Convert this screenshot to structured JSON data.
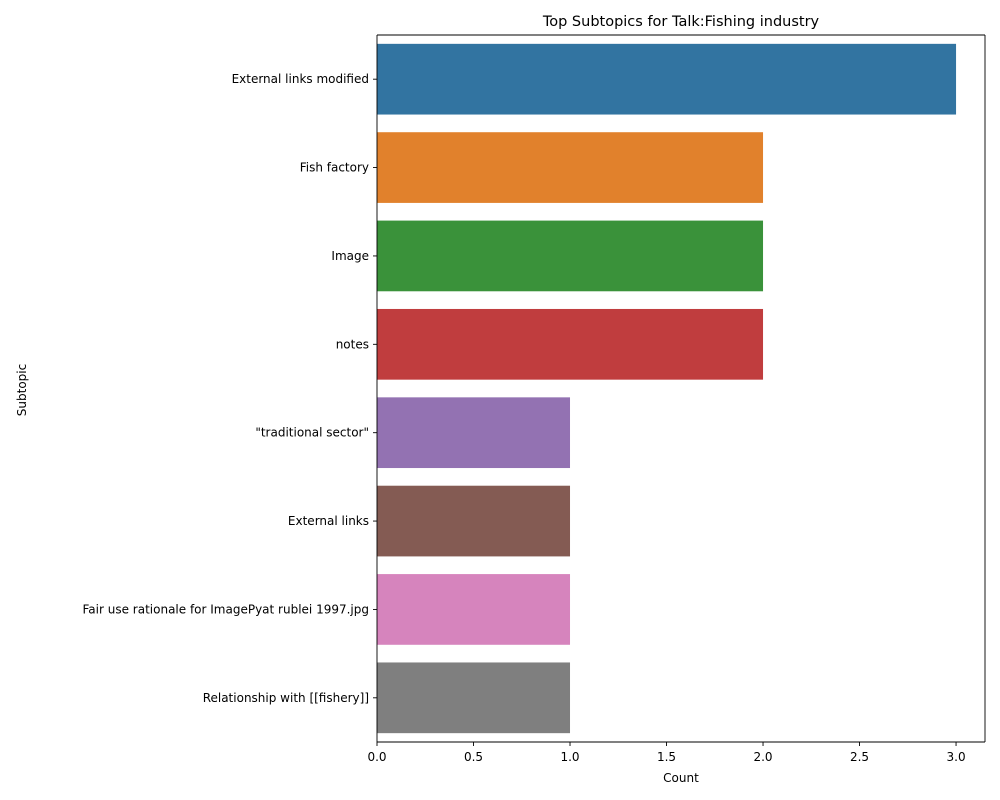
{
  "chart_data": {
    "type": "bar",
    "orientation": "horizontal",
    "title": "Top Subtopics for Talk:Fishing industry",
    "xlabel": "Count",
    "ylabel": "Subtopic",
    "xlim": [
      0,
      3.15
    ],
    "xticks": [
      0.0,
      0.5,
      1.0,
      1.5,
      2.0,
      2.5,
      3.0
    ],
    "xtick_labels": [
      "0.0",
      "0.5",
      "1.0",
      "1.5",
      "2.0",
      "2.5",
      "3.0"
    ],
    "grid": false,
    "legend": "none",
    "categories": [
      "External links modified",
      "Fish factory",
      "Image",
      "notes",
      "\"traditional sector\"",
      "External links",
      "Fair use rationale for ImagePyat rublei 1997.jpg",
      "Relationship with [[fishery]]"
    ],
    "values": [
      3,
      2,
      2,
      2,
      1,
      1,
      1,
      1
    ],
    "colors": [
      "#3274a1",
      "#e1812c",
      "#3a923a",
      "#c03d3e",
      "#9372b2",
      "#845b53",
      "#d684bd",
      "#7f7f7f"
    ]
  }
}
